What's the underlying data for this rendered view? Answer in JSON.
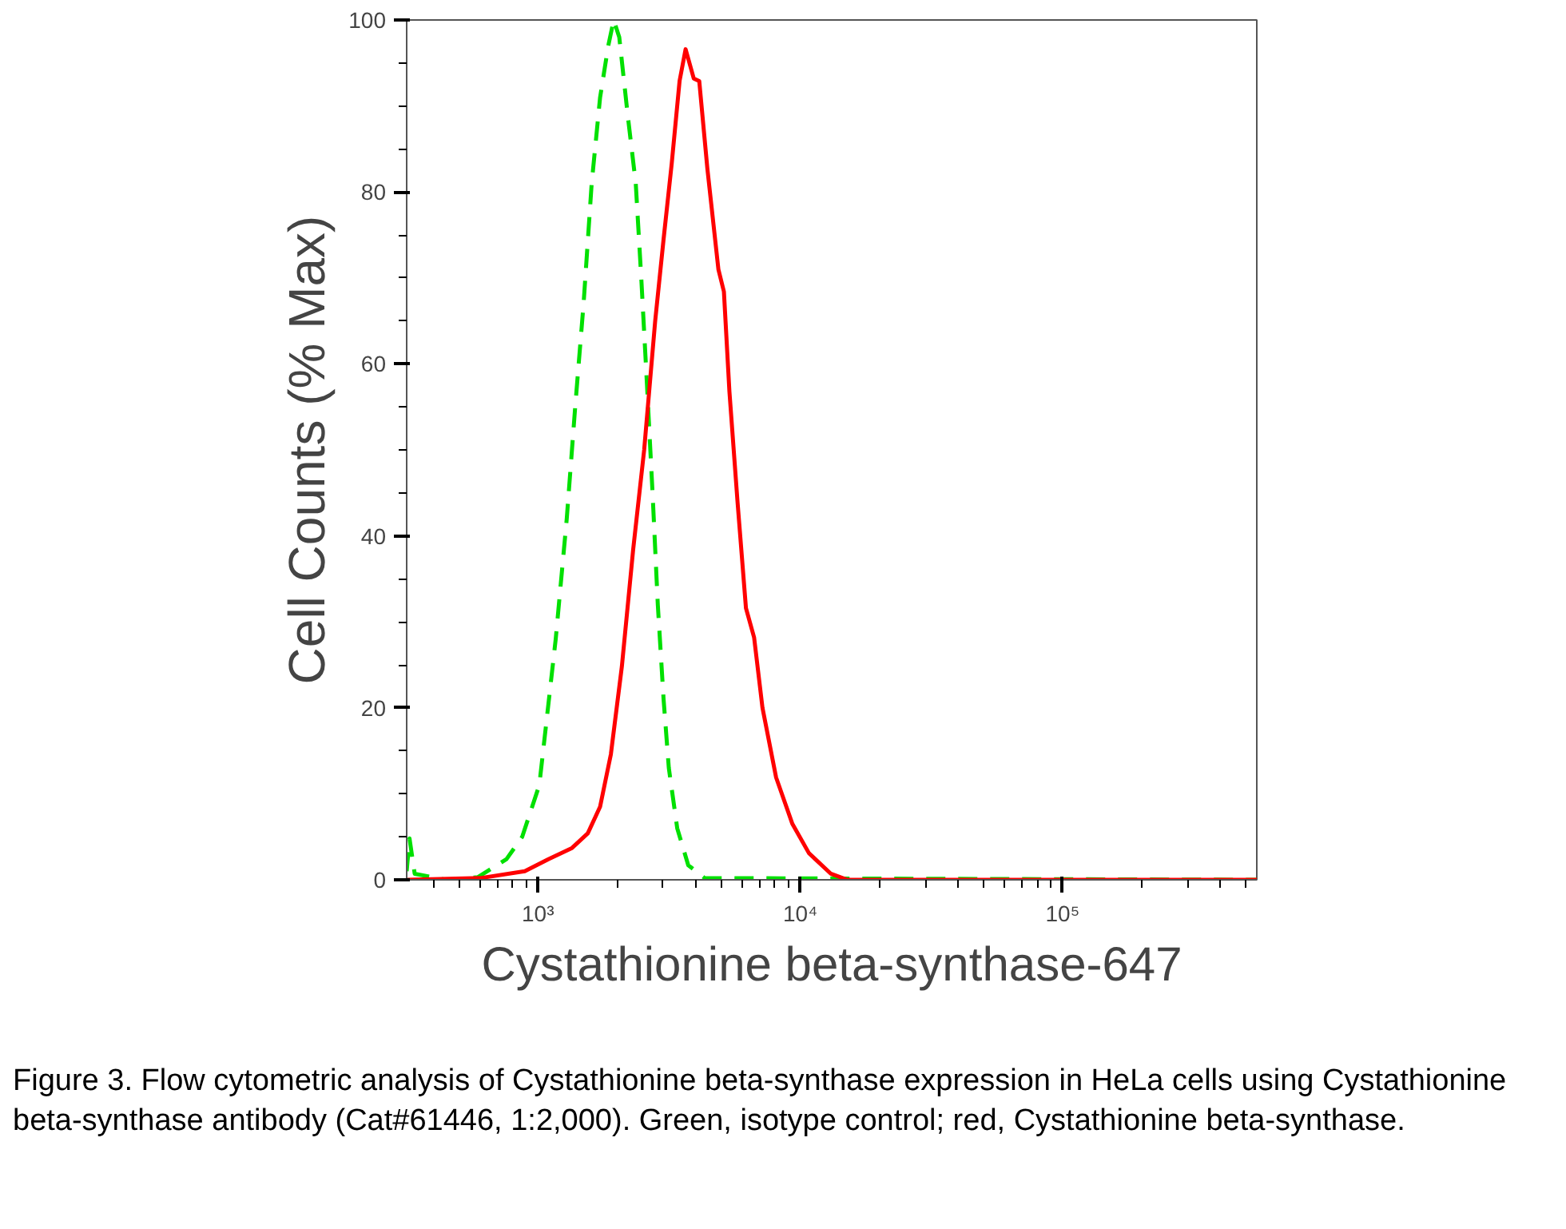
{
  "chart_data": {
    "type": "line",
    "xlabel": "Cystathionine beta-synthase-647",
    "ylabel": "Cell Counts (% Max)",
    "log": "x",
    "xlim": [
      316,
      550000
    ],
    "ylim": [
      0,
      100
    ],
    "xticks": [
      {
        "value": 400,
        "label": null
      },
      {
        "value": 500,
        "label": null
      },
      {
        "value": 600,
        "label": null
      },
      {
        "value": 700,
        "label": null
      },
      {
        "value": 800,
        "label": null
      },
      {
        "value": 900,
        "label": null
      },
      {
        "value": 1000,
        "label": "10³"
      },
      {
        "value": 2000,
        "label": null
      },
      {
        "value": 3000,
        "label": null
      },
      {
        "value": 4000,
        "label": null
      },
      {
        "value": 5000,
        "label": null
      },
      {
        "value": 6000,
        "label": null
      },
      {
        "value": 7000,
        "label": null
      },
      {
        "value": 8000,
        "label": null
      },
      {
        "value": 9000,
        "label": null
      },
      {
        "value": 10000,
        "label": "10⁴"
      },
      {
        "value": 20000,
        "label": null
      },
      {
        "value": 30000,
        "label": null
      },
      {
        "value": 40000,
        "label": null
      },
      {
        "value": 50000,
        "label": null
      },
      {
        "value": 60000,
        "label": null
      },
      {
        "value": 70000,
        "label": null
      },
      {
        "value": 80000,
        "label": null
      },
      {
        "value": 90000,
        "label": null
      },
      {
        "value": 100000,
        "label": "10⁵"
      },
      {
        "value": 200000,
        "label": null
      },
      {
        "value": 300000,
        "label": null
      },
      {
        "value": 400000,
        "label": null
      },
      {
        "value": 500000,
        "label": null
      }
    ],
    "yticks": [
      0,
      {
        "value": 5,
        "label": null
      },
      {
        "value": 10,
        "label": null
      },
      {
        "value": 15,
        "label": null
      },
      20,
      {
        "value": 25,
        "label": null
      },
      {
        "value": 30,
        "label": null
      },
      {
        "value": 35,
        "label": null
      },
      40,
      {
        "value": 45,
        "label": null
      },
      {
        "value": 50,
        "label": null
      },
      {
        "value": 55,
        "label": null
      },
      60,
      {
        "value": 65,
        "label": null
      },
      {
        "value": 70,
        "label": null
      },
      {
        "value": 75,
        "label": null
      },
      80,
      {
        "value": 85,
        "label": null
      },
      {
        "value": 90,
        "label": null
      },
      {
        "value": 95,
        "label": null
      },
      100
    ],
    "grid": false,
    "series": [
      {
        "color": "#00e000",
        "line_style": "dashed",
        "x": [
          316,
          324,
          339,
          447,
          589,
          759,
          871,
          1012,
          1169,
          1288,
          1387,
          1493,
          1603,
          1726,
          1854,
          1945,
          2042,
          2198,
          2360,
          2477,
          2600,
          2735,
          2864,
          3013,
          3155,
          3396,
          3741,
          4325,
          550000
        ],
        "values": [
          1,
          4.8,
          0.7,
          0,
          0.3,
          2.4,
          5,
          11,
          28,
          42,
          55,
          67,
          81,
          91,
          97,
          100,
          98,
          89,
          81,
          70,
          58,
          45,
          32,
          21,
          13,
          6,
          1.7,
          0.2,
          0
        ]
      },
      {
        "color": "#ff0000",
        "line_style": "solid",
        "x": [
          316,
          603,
          891,
          1096,
          1349,
          1549,
          1726,
          1897,
          2089,
          2307,
          2541,
          2799,
          3013,
          3236,
          3467,
          3656,
          3926,
          4121,
          4426,
          4875,
          5117,
          5370,
          5768,
          6209,
          6668,
          7178,
          8091,
          9333,
          10790,
          13092,
          15136,
          550000
        ],
        "values": [
          0,
          0.2,
          1,
          2.4,
          3.7,
          5.4,
          8.5,
          14.6,
          24.8,
          38.4,
          50,
          65,
          74.5,
          83.3,
          92.9,
          96.6,
          93.2,
          92.9,
          82.7,
          71,
          68.4,
          56.8,
          43.9,
          31.6,
          28.2,
          20,
          11.9,
          6.5,
          3.1,
          0.7,
          0,
          0
        ]
      }
    ],
    "annotations": [
      "Figure 3. Flow cytometric analysis of Cystathionine beta-synthase expression in HeLa cells using Cystathionine beta-synthase antibody (Cat#61446, 1:2,000). Green, isotype control; red, Cystathionine beta-synthase."
    ]
  }
}
